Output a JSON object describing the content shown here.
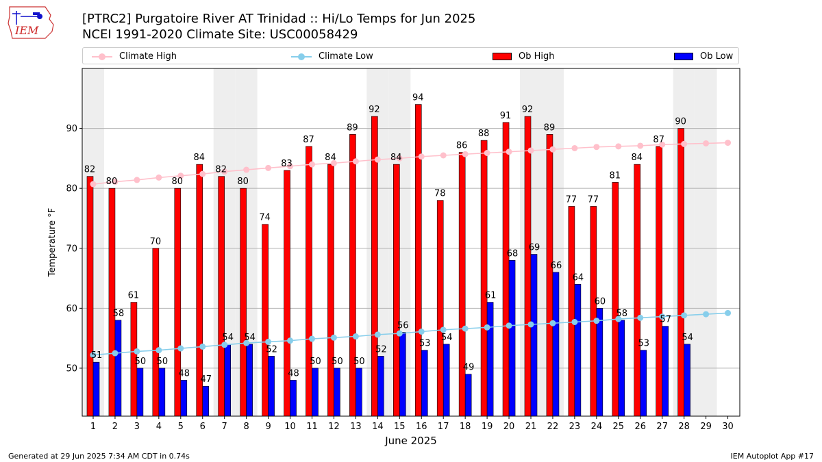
{
  "header": {
    "title_line1": "[PTRC2] Purgatoire River  AT Trinidad :: Hi/Lo Temps for Jun 2025",
    "title_line2": "NCEI 1991-2020 Climate Site: USC00058429"
  },
  "logo": {
    "text": "IEM"
  },
  "footer": {
    "left": "Generated at 29 Jun 2025 7:34 AM CDT in 0.74s",
    "right": "IEM Autoplot App #17"
  },
  "colors": {
    "ob_high": "#ff0000",
    "ob_low": "#0000ff",
    "climate_high": "#ffc0cb",
    "climate_low": "#87ceeb",
    "weekend_shade": "#eeeeee",
    "grid": "#b0b0b0"
  },
  "chart_data": {
    "type": "bar",
    "xlabel": "June 2025",
    "ylabel": "Temperature °F",
    "ylim": [
      42,
      100
    ],
    "yticks": [
      50,
      60,
      70,
      80,
      90
    ],
    "grid": "horizontal",
    "legend_position": "top",
    "categories": [
      "1",
      "2",
      "3",
      "4",
      "5",
      "6",
      "7",
      "8",
      "9",
      "10",
      "11",
      "12",
      "13",
      "14",
      "15",
      "16",
      "17",
      "18",
      "19",
      "20",
      "21",
      "22",
      "23",
      "24",
      "25",
      "26",
      "27",
      "28",
      "29",
      "30"
    ],
    "shaded_days": [
      1,
      7,
      8,
      14,
      15,
      21,
      22,
      28,
      29
    ],
    "series": [
      {
        "name": "Ob High",
        "kind": "bar",
        "values": [
          82,
          80,
          61,
          70,
          80,
          84,
          82,
          80,
          74,
          83,
          87,
          84,
          89,
          92,
          84,
          94,
          78,
          86,
          88,
          91,
          92,
          89,
          77,
          77,
          81,
          84,
          87,
          90,
          null,
          null
        ]
      },
      {
        "name": "Ob Low",
        "kind": "bar",
        "values": [
          51,
          58,
          50,
          50,
          48,
          47,
          54,
          54,
          52,
          48,
          50,
          50,
          50,
          52,
          56,
          53,
          54,
          49,
          61,
          68,
          69,
          66,
          64,
          60,
          58,
          53,
          57,
          54,
          null,
          null
        ]
      },
      {
        "name": "Climate High",
        "kind": "line",
        "values": [
          80.7,
          81.1,
          81.4,
          81.8,
          82.1,
          82.4,
          82.8,
          83.1,
          83.4,
          83.7,
          84.0,
          84.2,
          84.5,
          84.8,
          85.0,
          85.3,
          85.5,
          85.7,
          85.9,
          86.1,
          86.3,
          86.5,
          86.7,
          86.9,
          87.0,
          87.1,
          87.3,
          87.4,
          87.5,
          87.6
        ]
      },
      {
        "name": "Climate Low",
        "kind": "line",
        "values": [
          52.2,
          52.5,
          52.8,
          53.0,
          53.3,
          53.6,
          53.9,
          54.2,
          54.4,
          54.6,
          54.9,
          55.1,
          55.3,
          55.6,
          55.8,
          56.1,
          56.4,
          56.6,
          56.8,
          57.1,
          57.3,
          57.5,
          57.7,
          57.9,
          58.2,
          58.4,
          58.6,
          58.8,
          59.0,
          59.2
        ]
      }
    ]
  }
}
